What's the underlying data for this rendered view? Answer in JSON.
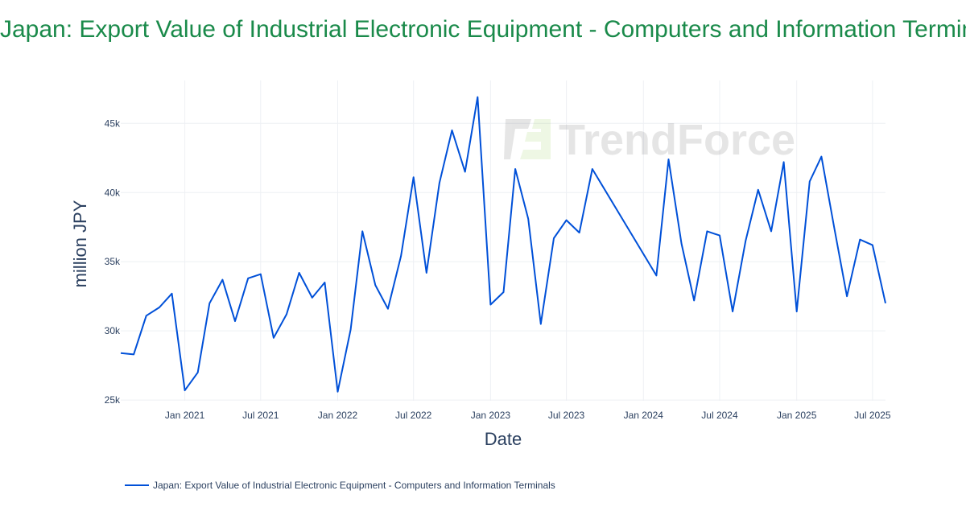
{
  "chart_data": {
    "type": "line",
    "title": "Japan: Export Value of Industrial Electronic Equipment - Computers and Information Terminals",
    "xlabel": "Date",
    "ylabel": "million JPY",
    "ylim": [
      24950,
      48100
    ],
    "xlim": [
      "2020-08-01",
      "2025-08-01"
    ],
    "grid": true,
    "legend_placement": "bottom-left",
    "line_color": "#0050d8",
    "x_ticks": [
      {
        "date": "2021-01-01",
        "label": "Jan 2021"
      },
      {
        "date": "2021-07-01",
        "label": "Jul 2021"
      },
      {
        "date": "2022-01-01",
        "label": "Jan 2022"
      },
      {
        "date": "2022-07-01",
        "label": "Jul 2022"
      },
      {
        "date": "2023-01-01",
        "label": "Jan 2023"
      },
      {
        "date": "2023-07-01",
        "label": "Jul 2023"
      },
      {
        "date": "2024-01-01",
        "label": "Jan 2024"
      },
      {
        "date": "2024-07-01",
        "label": "Jul 2024"
      },
      {
        "date": "2025-01-01",
        "label": "Jan 2025"
      },
      {
        "date": "2025-07-01",
        "label": "Jul 2025"
      }
    ],
    "y_ticks": [
      {
        "value": 25000,
        "label": "25k"
      },
      {
        "value": 30000,
        "label": "30k"
      },
      {
        "value": 35000,
        "label": "35k"
      },
      {
        "value": 40000,
        "label": "40k"
      },
      {
        "value": 45000,
        "label": "45k"
      }
    ],
    "series": [
      {
        "name": "Japan: Export Value of Industrial Electronic Equipment - Computers and Information Terminals",
        "x": [
          "2020-08",
          "2020-09",
          "2020-10",
          "2020-11",
          "2020-12",
          "2021-01",
          "2021-02",
          "2021-03",
          "2021-04",
          "2021-05",
          "2021-06",
          "2021-07",
          "2021-08",
          "2021-09",
          "2021-10",
          "2021-11",
          "2021-12",
          "2022-01",
          "2022-02",
          "2022-03",
          "2022-04",
          "2022-05",
          "2022-06",
          "2022-07",
          "2022-08",
          "2022-09",
          "2022-10",
          "2022-11",
          "2022-12",
          "2023-01",
          "2023-02",
          "2023-03",
          "2023-04",
          "2023-05",
          "2023-06",
          "2023-07",
          "2023-08",
          "2023-09",
          "2024-02",
          "2024-03",
          "2024-04",
          "2024-05",
          "2024-06",
          "2024-07",
          "2024-08",
          "2024-09",
          "2024-10",
          "2024-11",
          "2024-12",
          "2025-01",
          "2025-02",
          "2025-03",
          "2025-04",
          "2025-05",
          "2025-06",
          "2025-07",
          "2025-08"
        ],
        "values": [
          28400,
          28300,
          31100,
          31700,
          32700,
          25700,
          27000,
          32000,
          33700,
          30700,
          33800,
          34100,
          29500,
          31200,
          34200,
          32400,
          33500,
          25600,
          30100,
          37200,
          33300,
          31600,
          35400,
          41100,
          34200,
          40700,
          44500,
          41500,
          46900,
          31900,
          32800,
          41700,
          38100,
          30500,
          36700,
          38000,
          37100,
          41700,
          34000,
          42400,
          36300,
          32200,
          37200,
          36900,
          31400,
          36500,
          40200,
          37200,
          42200,
          31400,
          40800,
          42600,
          37400,
          32500,
          36600,
          36200,
          32000
        ]
      }
    ],
    "watermark": "TrendForce"
  }
}
